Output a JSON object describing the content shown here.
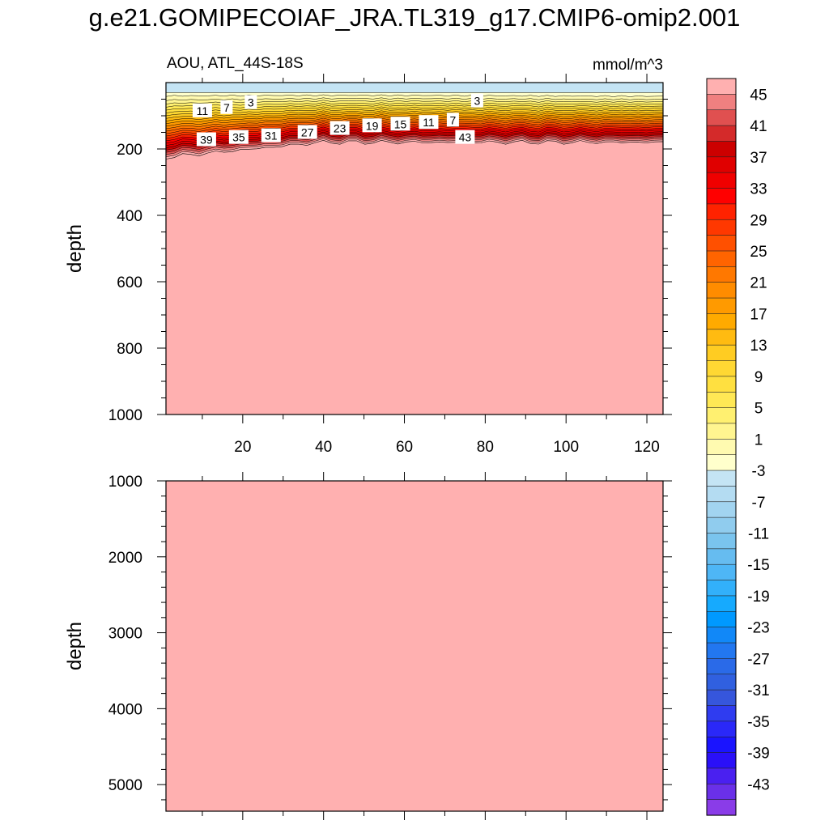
{
  "title": "g.e21.GOMIPECOIAF_JRA.TL319_g17.CMIP6-omip2.001",
  "chart_data": [
    {
      "type": "heatmap",
      "panel": "upper",
      "left_label": "AOU, ATL_44S-18S",
      "right_label": "mmol/m^3",
      "ylabel": "depth",
      "xlabel": "",
      "xlim": [
        1,
        124
      ],
      "ylim": [
        1000,
        0
      ],
      "x_ticks": [
        20,
        40,
        60,
        80,
        100,
        120
      ],
      "y_ticks": [
        200,
        400,
        600,
        800,
        1000
      ],
      "contour_labels": [
        {
          "text": "11",
          "x": 10,
          "depth": 85
        },
        {
          "text": "7",
          "x": 16,
          "depth": 75
        },
        {
          "text": "3",
          "x": 22,
          "depth": 60
        },
        {
          "text": "39",
          "x": 11,
          "depth": 172
        },
        {
          "text": "35",
          "x": 19,
          "depth": 165
        },
        {
          "text": "31",
          "x": 27,
          "depth": 160
        },
        {
          "text": "27",
          "x": 36,
          "depth": 150
        },
        {
          "text": "23",
          "x": 44,
          "depth": 138
        },
        {
          "text": "19",
          "x": 52,
          "depth": 130
        },
        {
          "text": "15",
          "x": 59,
          "depth": 125
        },
        {
          "text": "11",
          "x": 66,
          "depth": 120
        },
        {
          "text": "7",
          "x": 72,
          "depth": 113
        },
        {
          "text": "3",
          "x": 78,
          "depth": 55
        },
        {
          "text": "43",
          "x": 75,
          "depth": 165
        }
      ],
      "profile": {
        "surface_layer_depth": 35,
        "deep_value": 45,
        "gradient_top": 40,
        "gradient_bottom_west": 225,
        "gradient_bottom_east": 180
      }
    },
    {
      "type": "heatmap",
      "panel": "lower",
      "ylabel": "depth",
      "xlim": [
        1,
        124
      ],
      "ylim": [
        5350,
        1000
      ],
      "y_ticks": [
        1000,
        2000,
        3000,
        4000,
        5000
      ],
      "uniform_value": 45
    }
  ],
  "colorbar": {
    "labels": [
      "45",
      "41",
      "37",
      "33",
      "29",
      "25",
      "21",
      "17",
      "13",
      "9",
      "5",
      "1",
      "-3",
      "-7",
      "-11",
      "-15",
      "-19",
      "-23",
      "-27",
      "-31",
      "-35",
      "-39",
      "-43"
    ],
    "colors": [
      "#ffb0b0",
      "#f08080",
      "#e05050",
      "#d42a2a",
      "#cc0000",
      "#e00000",
      "#f00000",
      "#ff0000",
      "#ff2200",
      "#ff3800",
      "#ff5000",
      "#ff6400",
      "#ff7800",
      "#ff8c00",
      "#ff9a00",
      "#ffaa00",
      "#ffbb11",
      "#ffcc22",
      "#ffd833",
      "#ffe040",
      "#ffe855",
      "#fff070",
      "#fff590",
      "#fffab0",
      "#ffffcc",
      "#c4e4f4",
      "#b4dcf2",
      "#a2d4f0",
      "#90ccee",
      "#7ac4ee",
      "#66bcf0",
      "#4eb6f6",
      "#32b0fa",
      "#16aafe",
      "#0099ff",
      "#1188f8",
      "#2277f0",
      "#2a6ae8",
      "#3060e0",
      "#3656dc",
      "#2f3cf0",
      "#2a28f8",
      "#1a14ff",
      "#2a10f8",
      "#4a20f0",
      "#6a30e8",
      "#8a3ce8"
    ]
  }
}
